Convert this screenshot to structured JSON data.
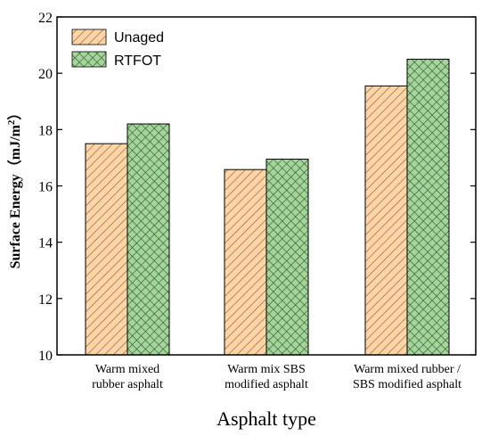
{
  "chart_data": {
    "type": "bar",
    "categories": [
      [
        "Warm mixed",
        "rubber asphalt"
      ],
      [
        "Warm mix SBS",
        "modified asphalt"
      ],
      [
        "Warm mixed rubber /",
        "SBS modified asphalt"
      ]
    ],
    "series": [
      {
        "name": "Unaged",
        "values": [
          17.5,
          16.58,
          19.55
        ],
        "color": "#FDD5A8",
        "hatch_color": "#A0662A",
        "pattern": "diagonal-hatch"
      },
      {
        "name": "RTFOT",
        "values": [
          18.2,
          16.95,
          20.5
        ],
        "color": "#A6D49A",
        "hatch_color": "#1F5A2A",
        "pattern": "cross-hatch"
      }
    ],
    "xlabel": "Asphalt type",
    "ylabel": "Surface Energy（mJ/m",
    "ylabel_sup": "2",
    "ylabel_close": "）",
    "ylim": [
      10,
      22
    ],
    "yticks": [
      10,
      12,
      14,
      16,
      18,
      20,
      22
    ],
    "legend_position": "top-left",
    "grid": false
  }
}
